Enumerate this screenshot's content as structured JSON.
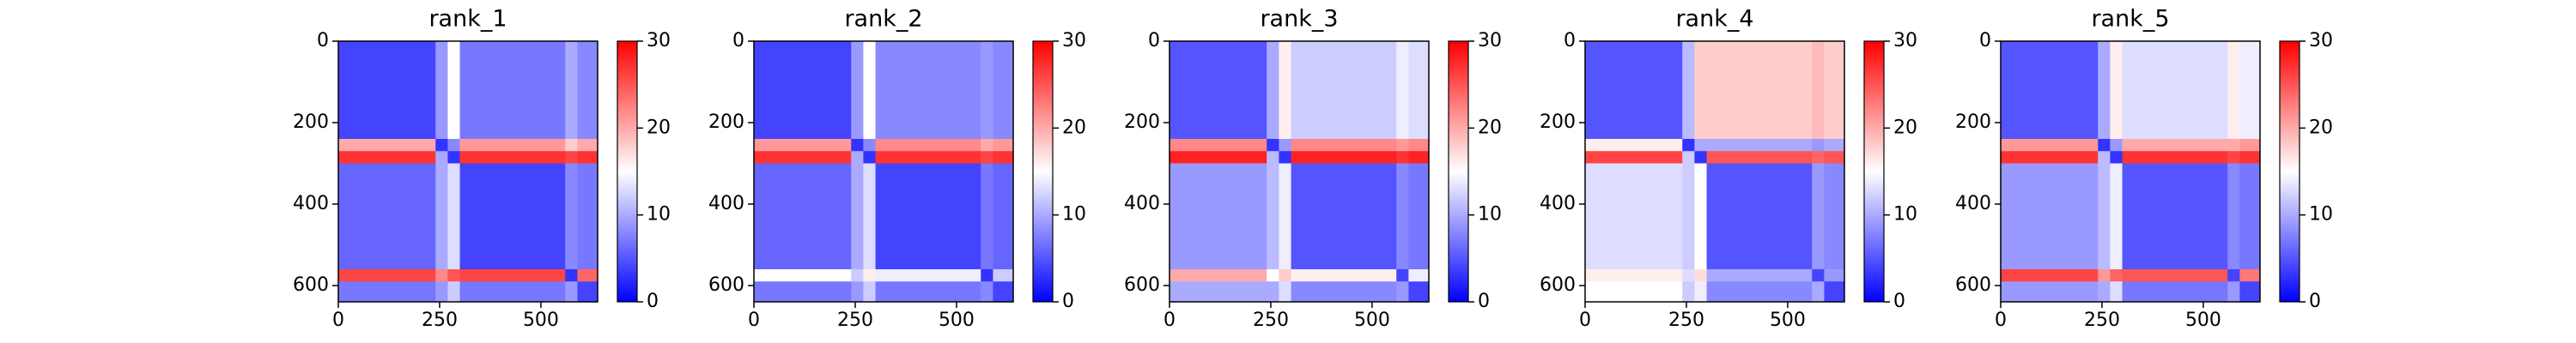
{
  "chart_data": [
    {
      "type": "heatmap",
      "title": "rank_1",
      "colormap": [
        "#0000ff",
        "#ffffff",
        "#ff0000"
      ],
      "xbins": [
        0,
        240,
        270,
        300,
        560,
        590,
        640
      ],
      "ybins": [
        0,
        240,
        270,
        300,
        560,
        590,
        640
      ],
      "values": [
        [
          4,
          9,
          15,
          7,
          10,
          8
        ],
        [
          20,
          3,
          8,
          21,
          18,
          20
        ],
        [
          27,
          10,
          3,
          27,
          26,
          27
        ],
        [
          6,
          10,
          13,
          4,
          8,
          7
        ],
        [
          26,
          22,
          25,
          26,
          3,
          24
        ],
        [
          7,
          9,
          12,
          7,
          9,
          4
        ]
      ],
      "xlim": [
        0,
        640
      ],
      "ylim": [
        640,
        0
      ],
      "xticks": [
        0,
        250,
        500
      ],
      "yticks": [
        0,
        200,
        400,
        600
      ],
      "zlim": [
        0,
        30
      ],
      "zticks": [
        0,
        10,
        20,
        30
      ]
    },
    {
      "type": "heatmap",
      "title": "rank_2",
      "colormap": [
        "#0000ff",
        "#ffffff",
        "#ff0000"
      ],
      "xbins": [
        0,
        240,
        270,
        300,
        560,
        590,
        640
      ],
      "ybins": [
        0,
        240,
        270,
        300,
        560,
        590,
        640
      ],
      "values": [
        [
          4,
          9,
          15,
          8,
          9,
          8
        ],
        [
          21,
          3,
          8,
          22,
          20,
          21
        ],
        [
          27,
          10,
          3,
          27,
          26,
          27
        ],
        [
          6,
          10,
          13,
          4,
          7,
          6
        ],
        [
          15,
          12,
          16,
          14,
          3,
          12
        ],
        [
          7,
          9,
          12,
          7,
          8,
          4
        ]
      ],
      "xlim": [
        0,
        640
      ],
      "ylim": [
        640,
        0
      ],
      "xticks": [
        0,
        250,
        500
      ],
      "yticks": [
        0,
        200,
        400,
        600
      ],
      "zlim": [
        0,
        30
      ],
      "zticks": [
        0,
        10,
        20,
        30
      ]
    },
    {
      "type": "heatmap",
      "title": "rank_3",
      "colormap": [
        "#0000ff",
        "#ffffff",
        "#ff0000"
      ],
      "xbins": [
        0,
        240,
        270,
        300,
        560,
        590,
        640
      ],
      "ybins": [
        0,
        240,
        270,
        300,
        560,
        590,
        640
      ],
      "values": [
        [
          5,
          10,
          16,
          12,
          14,
          13
        ],
        [
          22,
          3,
          9,
          22,
          21,
          22
        ],
        [
          28,
          11,
          3,
          28,
          27,
          28
        ],
        [
          9,
          11,
          14,
          5,
          8,
          7
        ],
        [
          20,
          15,
          18,
          16,
          4,
          14
        ],
        [
          10,
          10,
          13,
          8,
          9,
          4
        ]
      ],
      "xlim": [
        0,
        640
      ],
      "ylim": [
        640,
        0
      ],
      "xticks": [
        0,
        250,
        500
      ],
      "yticks": [
        0,
        200,
        400,
        600
      ],
      "zlim": [
        0,
        30
      ],
      "zticks": [
        0,
        10,
        20,
        30
      ]
    },
    {
      "type": "heatmap",
      "title": "rank_4",
      "colormap": [
        "#0000ff",
        "#ffffff",
        "#ff0000"
      ],
      "xbins": [
        0,
        240,
        270,
        300,
        560,
        590,
        640
      ],
      "ybins": [
        0,
        240,
        270,
        300,
        560,
        590,
        640
      ],
      "values": [
        [
          5,
          11,
          18,
          18,
          19,
          18
        ],
        [
          16,
          3,
          10,
          10,
          9,
          10
        ],
        [
          26,
          12,
          3,
          25,
          24,
          25
        ],
        [
          13,
          12,
          15,
          5,
          9,
          8
        ],
        [
          16,
          13,
          17,
          10,
          4,
          9
        ],
        [
          15,
          12,
          14,
          8,
          10,
          4
        ]
      ],
      "xlim": [
        0,
        640
      ],
      "ylim": [
        640,
        0
      ],
      "xticks": [
        0,
        250,
        500
      ],
      "yticks": [
        0,
        200,
        400,
        600
      ],
      "zlim": [
        0,
        30
      ],
      "zticks": [
        0,
        10,
        20,
        30
      ]
    },
    {
      "type": "heatmap",
      "title": "rank_5",
      "colormap": [
        "#0000ff",
        "#ffffff",
        "#ff0000"
      ],
      "xbins": [
        0,
        240,
        270,
        300,
        560,
        590,
        640
      ],
      "ybins": [
        0,
        240,
        270,
        300,
        560,
        590,
        640
      ],
      "values": [
        [
          5,
          10,
          16,
          13,
          16,
          14
        ],
        [
          21,
          3,
          9,
          20,
          20,
          21
        ],
        [
          27,
          11,
          3,
          27,
          26,
          27
        ],
        [
          9,
          11,
          14,
          5,
          8,
          7
        ],
        [
          26,
          21,
          24,
          25,
          4,
          23
        ],
        [
          9,
          10,
          13,
          7,
          9,
          4
        ]
      ],
      "xlim": [
        0,
        640
      ],
      "ylim": [
        640,
        0
      ],
      "xticks": [
        0,
        250,
        500
      ],
      "yticks": [
        0,
        200,
        400,
        600
      ],
      "zlim": [
        0,
        30
      ],
      "zticks": [
        0,
        10,
        20,
        30
      ]
    }
  ]
}
